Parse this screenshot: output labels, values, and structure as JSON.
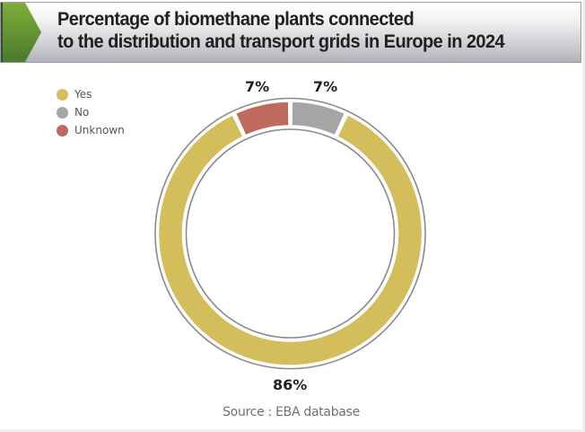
{
  "header": {
    "title_line1": "Percentage of biomethane plants connected",
    "title_line2": "to the distribution and transport grids in Europe in 2024",
    "accent_color": "#5f8f34"
  },
  "legend": {
    "items": [
      {
        "label": "Yes",
        "color": "#d4be5b"
      },
      {
        "label": "No",
        "color": "#a5a5a5"
      },
      {
        "label": "Unknown",
        "color": "#c0695f"
      }
    ]
  },
  "labels": {
    "unknown": "7%",
    "no": "7%",
    "yes": "86%"
  },
  "source": "Source : EBA database",
  "chart_data": {
    "type": "pie",
    "subtype": "donut",
    "title": "Percentage of biomethane plants connected to the distribution and transport grids in Europe in 2024",
    "categories": [
      "Yes",
      "No",
      "Unknown"
    ],
    "values": [
      86,
      7,
      7
    ],
    "unit": "%",
    "colors": [
      "#d4be5b",
      "#a5a5a5",
      "#c0695f"
    ],
    "data_labels": [
      "86%",
      "7%",
      "7%"
    ],
    "legend_position": "top-left",
    "start_angle_deg": 0,
    "direction": "clockwise",
    "source": "Source : EBA database"
  }
}
